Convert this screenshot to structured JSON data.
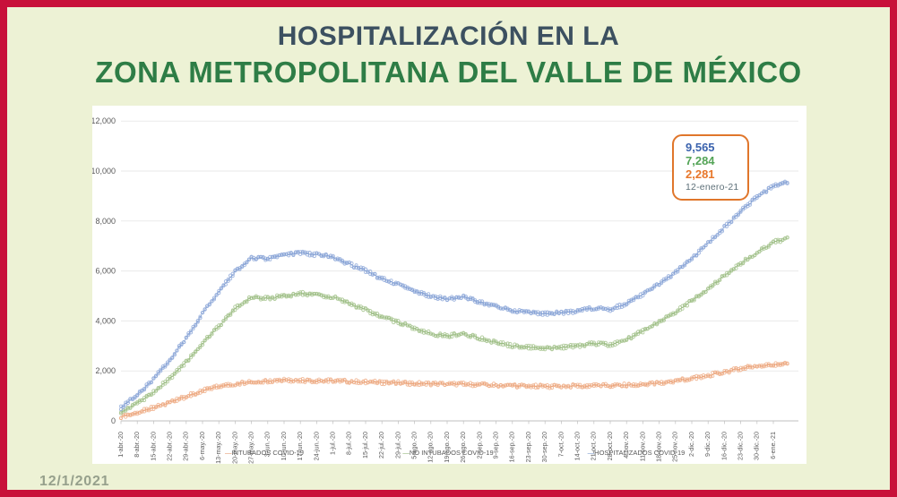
{
  "page": {
    "title_line1": "HOSPITALIZACIÓN EN LA",
    "title_line2": "ZONA METROPOLITANA DEL VALLE DE MÉXICO",
    "date_stamp": "12/1/2021"
  },
  "colors": {
    "border_red": "#C8113A",
    "background": "#EDF2D5",
    "title_line1": "#3C5060",
    "title_line2": "#2E7D46",
    "panel": "#FFFFFF",
    "axis_text": "#595959",
    "gridline": "#EAEAEA",
    "axis_line": "#BFBFBF",
    "date_stamp": "#96A08C"
  },
  "annotation": {
    "values": [
      {
        "text": "9,565",
        "color": "#3B63AE"
      },
      {
        "text": "7,284",
        "color": "#54A457"
      },
      {
        "text": "2,281",
        "color": "#E8772A"
      }
    ],
    "date_label": "12-enero-21",
    "date_color": "#5E7079",
    "border_color": "#E0762B"
  },
  "chart_data": {
    "type": "line",
    "title": "",
    "xlabel": "",
    "ylabel": "",
    "ylim": [
      0,
      12000
    ],
    "grid": true,
    "legend_position": "bottom",
    "y_ticks": [
      0,
      2000,
      4000,
      6000,
      8000,
      10000,
      12000
    ],
    "y_tick_labels": [
      "0",
      "2,000",
      "4,000",
      "6,000",
      "8,000",
      "10,000",
      "12,000"
    ],
    "x_labels": [
      "1-abr.-20",
      "8-abr.-20",
      "15-abr.-20",
      "22-abr.-20",
      "29-abr.-20",
      "6-may.-20",
      "13-may.-20",
      "20-may.-20",
      "27-may.-20",
      "3-jun.-20",
      "10-jun.-20",
      "17-jun.-20",
      "24-jun.-20",
      "1-jul.-20",
      "8-jul.-20",
      "15-jul.-20",
      "22-jul.-20",
      "29-jul.-20",
      "5-ago.-20",
      "12-ago.-20",
      "19-ago.-20",
      "26-ago.-20",
      "2-sep.-20",
      "9-sep.-20",
      "16-sep.-20",
      "23-sep.-20",
      "30-sep.-20",
      "7-oct.-20",
      "14-oct.-20",
      "21-oct.-20",
      "28-oct.-20",
      "4-nov.-20",
      "11-nov.-20",
      "18-nov.-20",
      "25-nov.-20",
      "2-dic.-20",
      "9-dic.-20",
      "16-dic.-20",
      "23-dic.-20",
      "30-dic.-20",
      "6-ene.-21"
    ],
    "final_point": {
      "label": "12-enero-21",
      "days_after_last_tick": 6
    },
    "series": [
      {
        "name": "INTUBADOS COVID-19",
        "legend_label": "INTUBADOS COVID-19",
        "marker_color": "#EFAF89",
        "line_color": "#E28E5C",
        "values": [
          180,
          330,
          520,
          750,
          980,
          1200,
          1380,
          1480,
          1560,
          1600,
          1640,
          1620,
          1600,
          1610,
          1580,
          1560,
          1540,
          1520,
          1500,
          1490,
          1480,
          1470,
          1450,
          1430,
          1410,
          1390,
          1380,
          1390,
          1400,
          1420,
          1410,
          1430,
          1470,
          1520,
          1600,
          1700,
          1820,
          1950,
          2100,
          2200,
          2250,
          2281
        ]
      },
      {
        "name": "NO INTUBADOS COVID-19",
        "legend_label": "NO INTUBADOS COVID-19",
        "marker_color": "#A6C48F",
        "line_color": "#82AA67",
        "values": [
          350,
          700,
          1150,
          1700,
          2350,
          3100,
          3800,
          4500,
          4950,
          4900,
          5000,
          5100,
          5050,
          4950,
          4700,
          4450,
          4150,
          3950,
          3700,
          3500,
          3400,
          3500,
          3300,
          3150,
          3000,
          2950,
          2900,
          2950,
          3000,
          3100,
          3050,
          3250,
          3600,
          3950,
          4350,
          4800,
          5300,
          5800,
          6300,
          6750,
          7150,
          7284
        ]
      },
      {
        "name": "HOSPITALIZADOS COVID-19",
        "legend_label": "HOSPITALIZADOS COVID-19",
        "marker_color": "#8FA9D9",
        "line_color": "#6A8CC7",
        "values": [
          530,
          1030,
          1670,
          2450,
          3330,
          4300,
          5180,
          5980,
          6510,
          6500,
          6640,
          6720,
          6650,
          6560,
          6280,
          6010,
          5690,
          5470,
          5200,
          4990,
          4880,
          4970,
          4750,
          4580,
          4410,
          4340,
          4280,
          4340,
          4400,
          4520,
          4460,
          4680,
          5070,
          5470,
          5950,
          6500,
          7120,
          7750,
          8400,
          8950,
          9400,
          9565
        ]
      }
    ]
  }
}
